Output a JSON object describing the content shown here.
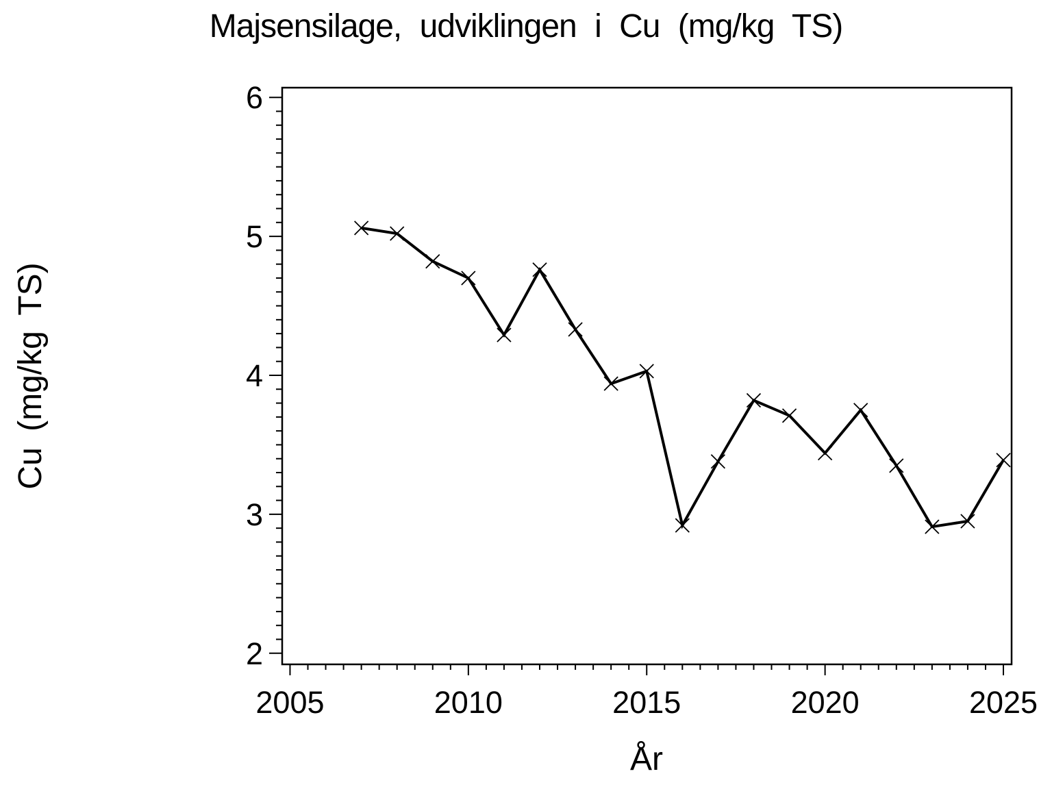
{
  "title": "Majsensilage, udviklingen i Cu (mg/kg TS)",
  "chart_data": {
    "type": "line",
    "title": "Majsensilage, udviklingen i Cu (mg/kg TS)",
    "xlabel": "År",
    "ylabel": "Cu (mg/kg TS)",
    "x": [
      2007,
      2008,
      2009,
      2010,
      2011,
      2012,
      2013,
      2014,
      2015,
      2016,
      2017,
      2018,
      2019,
      2020,
      2021,
      2022,
      2023,
      2024,
      2025
    ],
    "series": [
      {
        "name": "Cu (mg/kg TS)",
        "values": [
          5.06,
          5.02,
          4.82,
          4.7,
          4.29,
          4.76,
          4.33,
          3.94,
          4.03,
          2.92,
          3.38,
          3.82,
          3.71,
          3.44,
          3.75,
          3.35,
          2.91,
          2.95,
          3.39
        ]
      }
    ],
    "xticks": [
      2005,
      2010,
      2015,
      2020,
      2025
    ],
    "yticks": [
      2,
      3,
      4,
      5,
      6
    ],
    "x_minor_step": 0.5,
    "y_minor_step": 0.1,
    "xlim": [
      2004.78,
      2025.23
    ],
    "ylim": [
      1.92,
      6.07
    ],
    "marker": "x",
    "line_color": "#000000",
    "background_color": "#ffffff",
    "grid": false,
    "legend": false
  }
}
